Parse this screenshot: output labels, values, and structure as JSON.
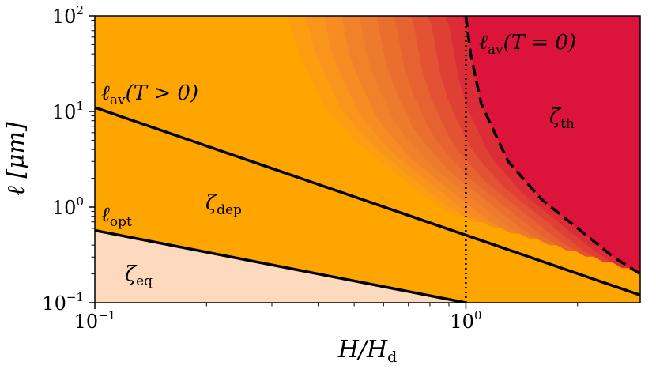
{
  "chart_data": {
    "type": "area",
    "title": "",
    "xscale": "log",
    "yscale": "log",
    "xlim": [
      0.1,
      2.95
    ],
    "ylim": [
      0.1,
      100
    ],
    "xlabel": {
      "main": "H/H",
      "sub": "d"
    },
    "ylabel": {
      "main": "ℓ [μm]"
    },
    "xticks": [
      {
        "value": 0.1,
        "base": "10",
        "exp": "−1"
      },
      {
        "value": 1,
        "base": "10",
        "exp": "0"
      }
    ],
    "yticks": [
      {
        "value": 0.1,
        "base": "10",
        "exp": "−1"
      },
      {
        "value": 1,
        "base": "10",
        "exp": "0"
      },
      {
        "value": 10,
        "base": "10",
        "exp": "1"
      },
      {
        "value": 100,
        "base": "10",
        "exp": "2"
      }
    ],
    "series": [
      {
        "label": "ℓ",
        "label_sub": "av",
        "label_arg": "(T > 0)",
        "style": "solid",
        "x": [
          0.1,
          2.95
        ],
        "y": [
          11,
          0.12
        ]
      },
      {
        "label": "ℓ",
        "label_sub": "opt",
        "label_arg": "",
        "style": "solid",
        "x": [
          0.1,
          1.0
        ],
        "y": [
          0.57,
          0.1
        ]
      },
      {
        "label": "ℓ",
        "label_sub": "av",
        "label_arg": "(T = 0)",
        "style": "dashed",
        "x": [
          1.0,
          1.03,
          1.1,
          1.3,
          1.6,
          2.0,
          2.5,
          2.95
        ],
        "y": [
          100,
          40,
          12,
          3.0,
          1.2,
          0.6,
          0.3,
          0.2
        ]
      },
      {
        "label": "H/H_d = 1",
        "style": "dotted",
        "x": [
          1,
          1
        ],
        "y": [
          0.1,
          100
        ]
      }
    ],
    "regions": [
      {
        "label": "ζ",
        "label_sub": "eq",
        "color": "#fdd9bd"
      },
      {
        "label": "ζ",
        "label_sub": "dep",
        "color": "#ffa500"
      },
      {
        "label": "ζ",
        "label_sub": "th",
        "color": "#dc143c"
      }
    ],
    "colors": {
      "gradient": [
        "#ffa500",
        "#fc9e10",
        "#f9951a",
        "#f68c22",
        "#f2822a",
        "#ee7b2d",
        "#ea6f2f",
        "#e66331",
        "#e35232",
        "#e03f34",
        "#dc2c37",
        "#dc143c"
      ]
    }
  }
}
